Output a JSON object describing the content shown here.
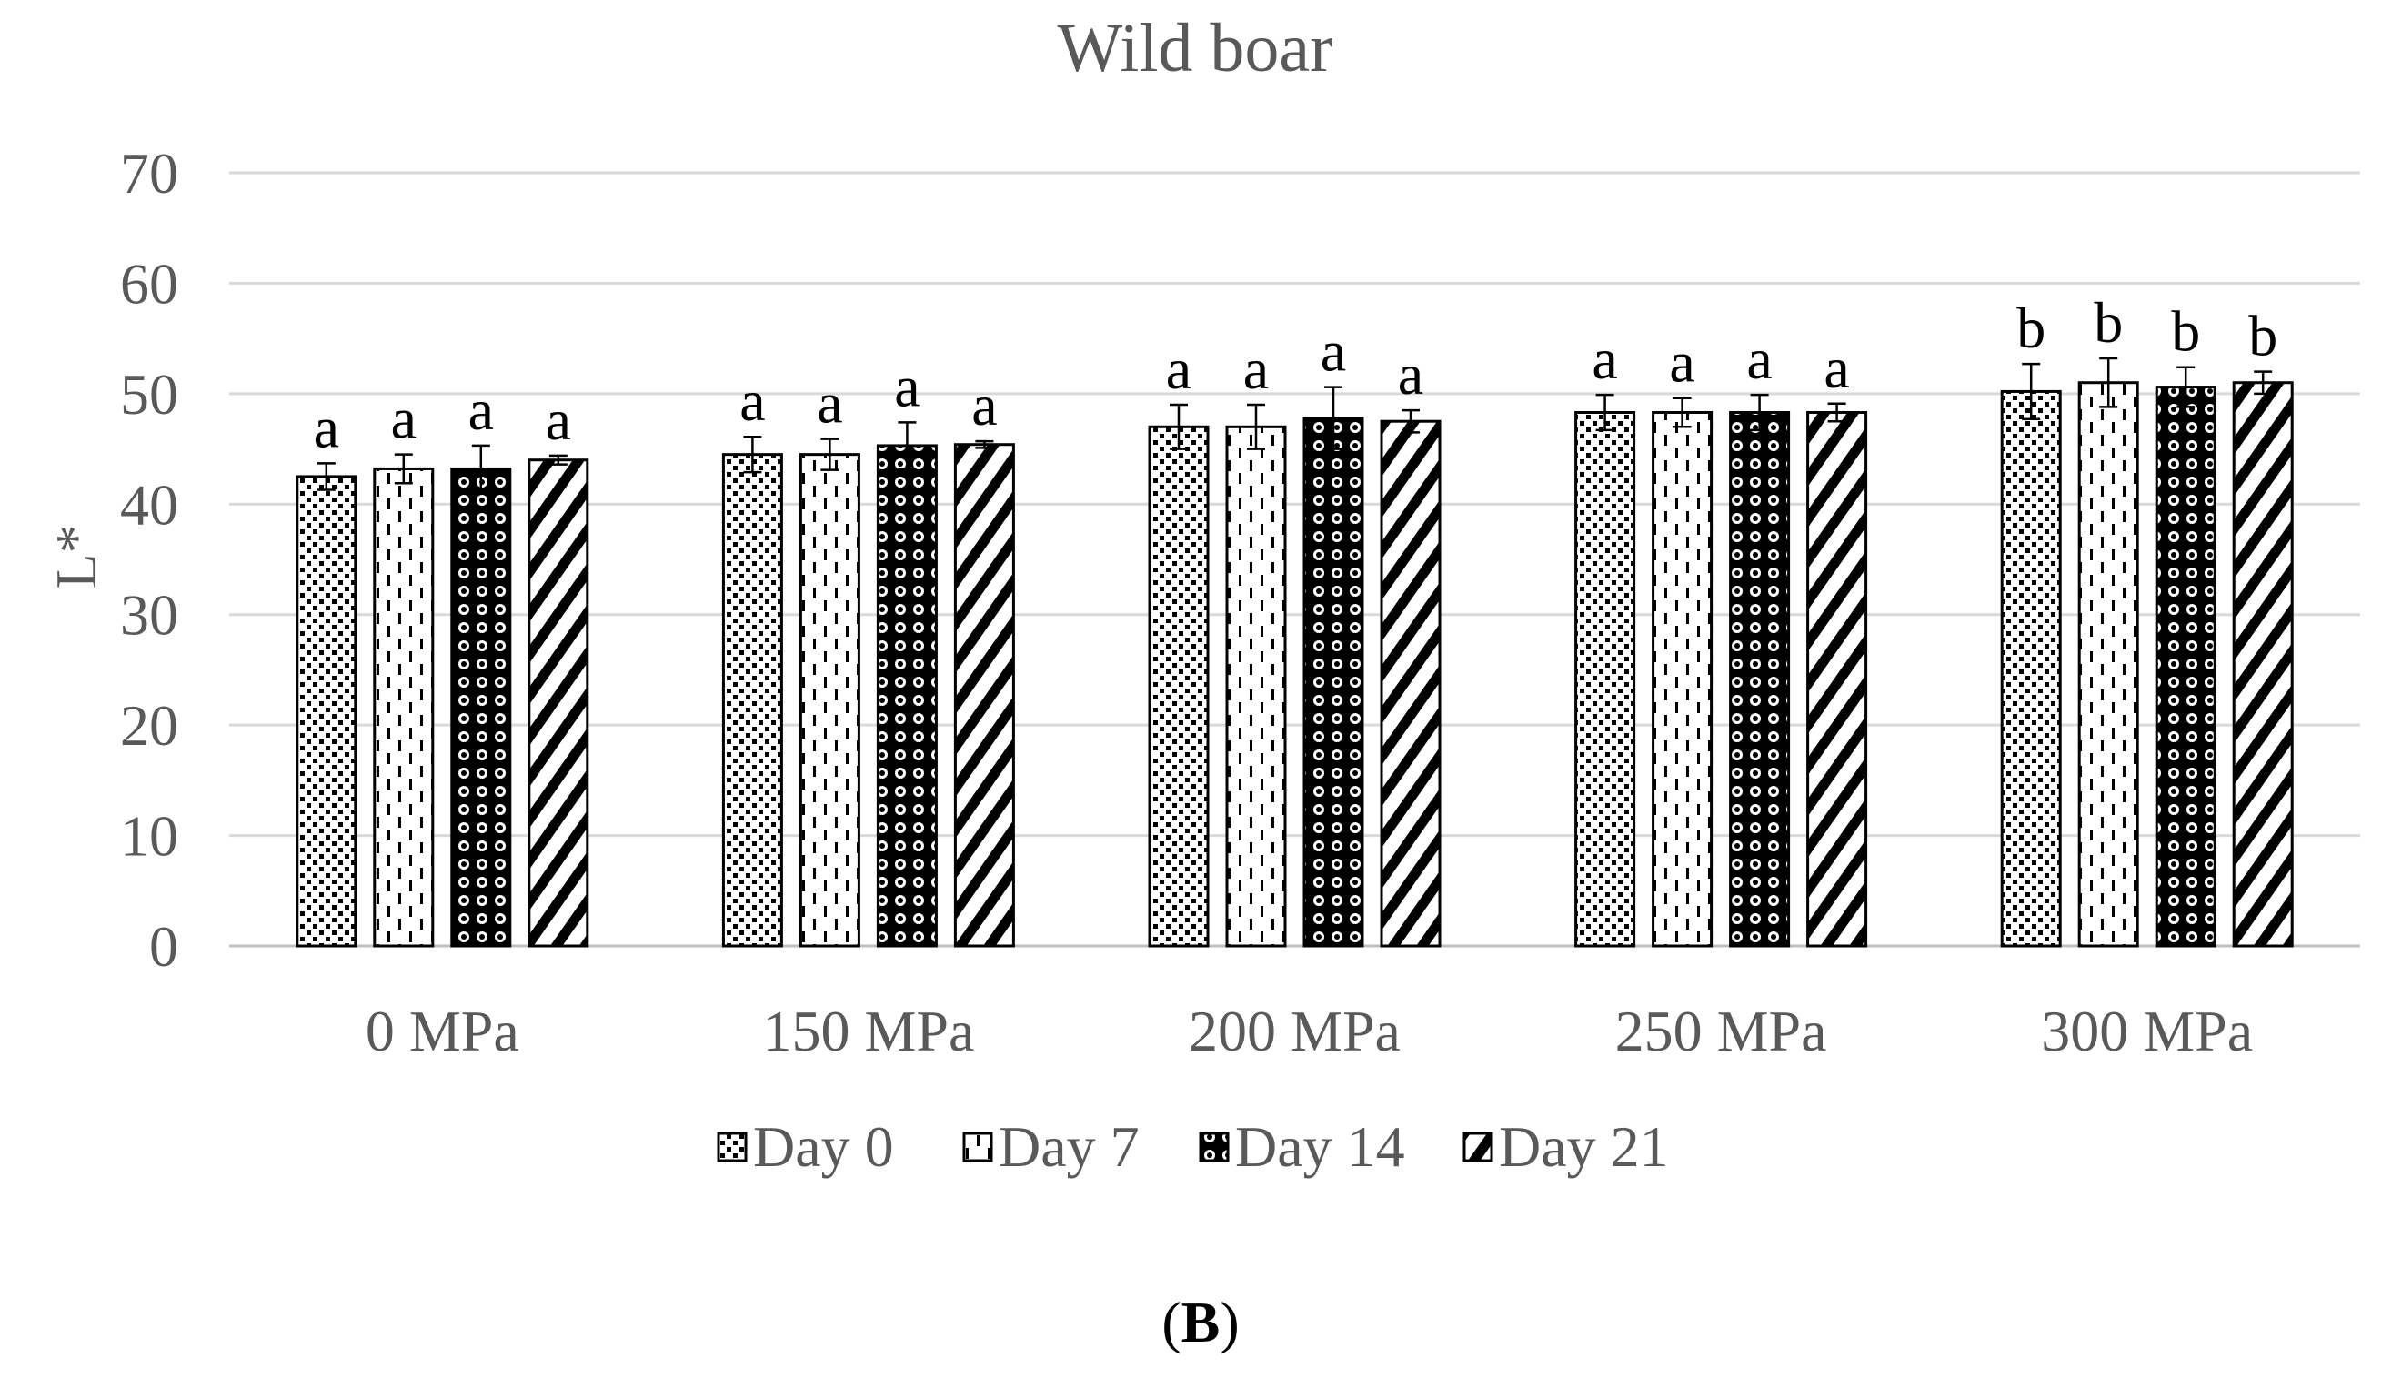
{
  "chart_data": {
    "type": "bar",
    "title": "Wild boar",
    "xlabel": "",
    "ylabel": "L*",
    "ylim": [
      0,
      70
    ],
    "yticks": [
      0,
      10,
      20,
      30,
      40,
      50,
      60,
      70
    ],
    "grid": true,
    "legend_position": "bottom",
    "categories": [
      "0 MPa",
      "150 MPa",
      "200 MPa",
      "250 MPa",
      "300 MPa"
    ],
    "series": [
      {
        "name": "Day 0",
        "pattern": "dots-dense",
        "values": [
          42.5,
          44.5,
          47.0,
          48.3,
          50.2
        ],
        "errors": [
          1.2,
          1.6,
          2.0,
          1.6,
          2.5
        ],
        "labels": [
          "a",
          "a",
          "a",
          "a",
          "b"
        ]
      },
      {
        "name": "Day 7",
        "pattern": "dashes-vertical",
        "values": [
          43.2,
          44.5,
          47.0,
          48.3,
          51.0
        ],
        "errors": [
          1.3,
          1.4,
          2.0,
          1.3,
          2.2
        ],
        "labels": [
          "a",
          "a",
          "a",
          "a",
          "b"
        ]
      },
      {
        "name": "Day 14",
        "pattern": "circles-dark",
        "values": [
          43.2,
          45.3,
          47.8,
          48.3,
          50.6
        ],
        "errors": [
          2.1,
          2.1,
          2.8,
          1.6,
          1.8
        ],
        "labels": [
          "a",
          "a",
          "a",
          "a",
          "b"
        ]
      },
      {
        "name": "Day 21",
        "pattern": "diagonal-stripes",
        "values": [
          44.0,
          45.4,
          47.5,
          48.3,
          51.0
        ],
        "errors": [
          0.4,
          0.3,
          1.0,
          0.8,
          1.0
        ],
        "labels": [
          "a",
          "a",
          "a",
          "a",
          "b"
        ]
      }
    ]
  },
  "panel_label": {
    "open": "(",
    "letter": "B",
    "close": ")"
  },
  "colors": {
    "text": "#595959",
    "grid": "#d9d9d9",
    "bar_stroke": "#000000",
    "bar_fill": "#ffffff"
  }
}
